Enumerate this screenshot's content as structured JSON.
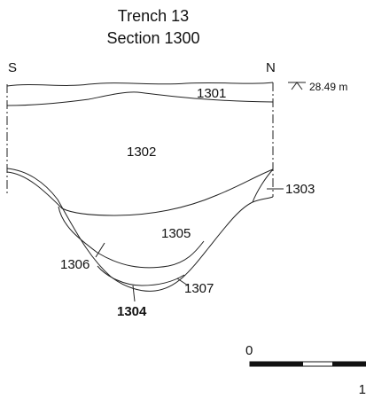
{
  "title": [
    "Trench 13",
    "Section 1300"
  ],
  "orientation": {
    "left": "S",
    "right": "N"
  },
  "datum": "28.49 m",
  "layers": {
    "l1301": "1301",
    "l1302": "1302",
    "l1303": "1303",
    "l1305": "1305",
    "l1306": "1306",
    "l1307": "1307",
    "l1304": "1304"
  },
  "scale": {
    "start": "0",
    "end": "1"
  }
}
